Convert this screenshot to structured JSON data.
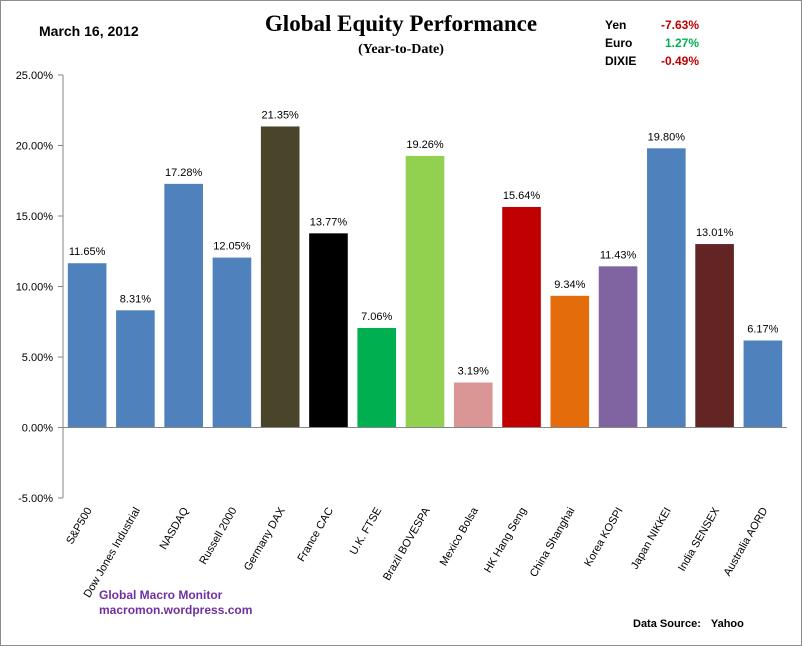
{
  "header": {
    "date": "March 16, 2012",
    "title": "Global Equity Performance",
    "subtitle": "(Year-to-Date)"
  },
  "fx_table": [
    {
      "name": "Yen",
      "value": "-7.63%",
      "color": "#c00000"
    },
    {
      "name": "Euro",
      "value": "1.27%",
      "color": "#00b050"
    },
    {
      "name": "DIXIE",
      "value": "-0.49%",
      "color": "#c00000"
    }
  ],
  "footer": {
    "credit_line1": "Global  Macro  Monitor",
    "credit_line2": "macromon.wordpress.com",
    "source_label": "Data Source:",
    "source_value": "Yahoo"
  },
  "chart_data": {
    "type": "bar",
    "title": "Global Equity Performance",
    "subtitle": "(Year-to-Date)",
    "xlabel": "",
    "ylabel": "",
    "ylim": [
      -5,
      25
    ],
    "yticks": [
      -5,
      0,
      5,
      10,
      15,
      20,
      25
    ],
    "ytick_labels": [
      "-5.00%",
      "0.00%",
      "5.00%",
      "10.00%",
      "15.00%",
      "20.00%",
      "25.00%"
    ],
    "grid": false,
    "legend": "none",
    "categories": [
      "S&P500",
      "Dow Jones Industrial",
      "NASDAQ",
      "Russell 2000",
      "Germany DAX",
      "France CAC",
      "U.K. FTSE",
      "Brazil BOVESPA",
      "Mexico Bolsa",
      "HK Hang Seng",
      "China Shanghai",
      "Korea KOSPI",
      "Japan NIKKEI",
      "India SENSEX",
      "Australia AORD"
    ],
    "values": [
      11.65,
      8.31,
      17.28,
      12.05,
      21.35,
      13.77,
      7.06,
      19.26,
      3.19,
      15.64,
      9.34,
      11.43,
      19.8,
      13.01,
      6.17
    ],
    "data_labels": [
      "11.65%",
      "8.31%",
      "17.28%",
      "12.05%",
      "21.35%",
      "13.77%",
      "7.06%",
      "19.26%",
      "3.19%",
      "15.64%",
      "9.34%",
      "11.43%",
      "19.80%",
      "13.01%",
      "6.17%"
    ],
    "colors": [
      "#4f81bd",
      "#4f81bd",
      "#4f81bd",
      "#4f81bd",
      "#4a442a",
      "#000000",
      "#00b050",
      "#92d050",
      "#d99694",
      "#c00000",
      "#e46c0a",
      "#8064a2",
      "#4f81bd",
      "#632523",
      "#4f81bd"
    ]
  }
}
